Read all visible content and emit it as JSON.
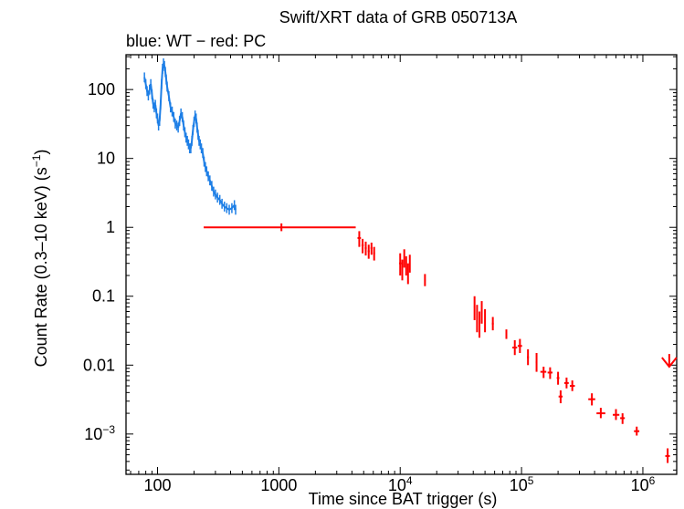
{
  "chart_data": {
    "type": "scatter",
    "title": "Swift/XRT data of GRB 050713A",
    "subtitle": "blue: WT − red: PC",
    "xlabel": "Time since BAT trigger (s)",
    "ylabel_main": "Count Rate (0.3–10 keV) (s",
    "ylabel_sup": "−1",
    "ylabel_tail": ")",
    "x_scale": "log",
    "y_scale": "log",
    "xlim": [
      55,
      1900000
    ],
    "ylim": [
      0.00026,
      320
    ],
    "x_ticks": [
      {
        "value": 100,
        "base": "100",
        "sup": ""
      },
      {
        "value": 1000,
        "base": "1000",
        "sup": ""
      },
      {
        "value": 10000,
        "base": "10",
        "sup": "4"
      },
      {
        "value": 100000,
        "base": "10",
        "sup": "5"
      },
      {
        "value": 1000000,
        "base": "10",
        "sup": "6"
      }
    ],
    "y_ticks": [
      {
        "value": 100,
        "base": "100",
        "sup": ""
      },
      {
        "value": 10,
        "base": "10",
        "sup": ""
      },
      {
        "value": 1,
        "base": "1",
        "sup": ""
      },
      {
        "value": 0.1,
        "base": "0.1",
        "sup": ""
      },
      {
        "value": 0.01,
        "base": "0.01",
        "sup": ""
      },
      {
        "value": 0.001,
        "base": "10",
        "sup": "−3"
      }
    ],
    "grid": false,
    "colors": {
      "WT": "#1e7fe6",
      "PC": "#ff0000"
    },
    "series": [
      {
        "name": "WT",
        "points": [
          [
            78,
            150
          ],
          [
            80,
            120
          ],
          [
            82,
            95
          ],
          [
            84,
            82
          ],
          [
            86,
            100
          ],
          [
            88,
            120
          ],
          [
            90,
            85
          ],
          [
            92,
            62
          ],
          [
            94,
            55
          ],
          [
            96,
            60
          ],
          [
            98,
            45
          ],
          [
            100,
            38
          ],
          [
            102,
            30
          ],
          [
            104,
            35
          ],
          [
            106,
            60
          ],
          [
            108,
            120
          ],
          [
            110,
            200
          ],
          [
            112,
            240
          ],
          [
            114,
            220
          ],
          [
            116,
            180
          ],
          [
            118,
            140
          ],
          [
            120,
            110
          ],
          [
            124,
            80
          ],
          [
            128,
            55
          ],
          [
            132,
            48
          ],
          [
            136,
            40
          ],
          [
            140,
            32
          ],
          [
            144,
            30
          ],
          [
            148,
            28
          ],
          [
            152,
            35
          ],
          [
            156,
            45
          ],
          [
            160,
            40
          ],
          [
            164,
            30
          ],
          [
            168,
            24
          ],
          [
            172,
            20
          ],
          [
            176,
            18
          ],
          [
            180,
            16
          ],
          [
            184,
            14
          ],
          [
            188,
            14
          ],
          [
            192,
            18
          ],
          [
            196,
            26
          ],
          [
            200,
            34
          ],
          [
            204,
            42
          ],
          [
            208,
            38
          ],
          [
            212,
            28
          ],
          [
            216,
            22
          ],
          [
            220,
            18
          ],
          [
            225,
            16
          ],
          [
            230,
            14
          ],
          [
            236,
            12
          ],
          [
            242,
            9
          ],
          [
            248,
            7.5
          ],
          [
            254,
            6.5
          ],
          [
            262,
            5.5
          ],
          [
            270,
            4.8
          ],
          [
            280,
            4
          ],
          [
            290,
            3.3
          ],
          [
            300,
            3
          ],
          [
            312,
            2.7
          ],
          [
            326,
            2.5
          ],
          [
            340,
            2.2
          ],
          [
            356,
            2
          ],
          [
            372,
            1.9
          ],
          [
            390,
            1.8
          ],
          [
            410,
            1.9
          ],
          [
            430,
            2.1
          ],
          [
            440,
            1.8
          ]
        ]
      },
      {
        "name": "PC",
        "points": [
          {
            "x": 1050,
            "y": 1.0,
            "xmin": 240,
            "xmax": 4300,
            "ymin": 0.88,
            "ymax": 1.14
          },
          {
            "x": 4600,
            "y": 0.7,
            "xmin": 4450,
            "xmax": 4750,
            "ymin": 0.52,
            "ymax": 0.88
          },
          {
            "x": 4900,
            "y": 0.55,
            "xmin": 4800,
            "xmax": 5000,
            "ymin": 0.42,
            "ymax": 0.68
          },
          {
            "x": 5200,
            "y": 0.5,
            "xmin": 5100,
            "xmax": 5300,
            "ymin": 0.39,
            "ymax": 0.62
          },
          {
            "x": 5500,
            "y": 0.45,
            "xmin": 5400,
            "xmax": 5600,
            "ymin": 0.35,
            "ymax": 0.56
          },
          {
            "x": 5800,
            "y": 0.5,
            "xmin": 5700,
            "xmax": 5900,
            "ymin": 0.4,
            "ymax": 0.6
          },
          {
            "x": 6100,
            "y": 0.42,
            "xmin": 6000,
            "xmax": 6200,
            "ymin": 0.33,
            "ymax": 0.52
          },
          {
            "x": 10000,
            "y": 0.3,
            "xmin": 9800,
            "xmax": 10200,
            "ymin": 0.2,
            "ymax": 0.42
          },
          {
            "x": 10400,
            "y": 0.25,
            "xmin": 10300,
            "xmax": 10500,
            "ymin": 0.17,
            "ymax": 0.34
          },
          {
            "x": 10800,
            "y": 0.35,
            "xmin": 10700,
            "xmax": 10900,
            "ymin": 0.26,
            "ymax": 0.48
          },
          {
            "x": 11200,
            "y": 0.28,
            "xmin": 11100,
            "xmax": 11300,
            "ymin": 0.2,
            "ymax": 0.38
          },
          {
            "x": 11600,
            "y": 0.22,
            "xmin": 11500,
            "xmax": 11700,
            "ymin": 0.15,
            "ymax": 0.3
          },
          {
            "x": 12000,
            "y": 0.3,
            "xmin": 11900,
            "xmax": 12100,
            "ymin": 0.22,
            "ymax": 0.4
          },
          {
            "x": 16000,
            "y": 0.17,
            "xmin": 15800,
            "xmax": 16200,
            "ymin": 0.14,
            "ymax": 0.21
          },
          {
            "x": 41000,
            "y": 0.07,
            "xmin": 40500,
            "xmax": 41500,
            "ymin": 0.045,
            "ymax": 0.1
          },
          {
            "x": 43000,
            "y": 0.05,
            "xmin": 42500,
            "xmax": 43500,
            "ymin": 0.03,
            "ymax": 0.075
          },
          {
            "x": 45000,
            "y": 0.04,
            "xmin": 44500,
            "xmax": 45500,
            "ymin": 0.025,
            "ymax": 0.06
          },
          {
            "x": 47000,
            "y": 0.06,
            "xmin": 46500,
            "xmax": 47500,
            "ymin": 0.04,
            "ymax": 0.085
          },
          {
            "x": 50000,
            "y": 0.045,
            "xmin": 49500,
            "xmax": 50500,
            "ymin": 0.03,
            "ymax": 0.065
          },
          {
            "x": 58000,
            "y": 0.04,
            "xmin": 57000,
            "xmax": 59000,
            "ymin": 0.032,
            "ymax": 0.05
          },
          {
            "x": 75000,
            "y": 0.028,
            "xmin": 74000,
            "xmax": 76000,
            "ymin": 0.024,
            "ymax": 0.033
          },
          {
            "x": 88000,
            "y": 0.018,
            "xmin": 84000,
            "xmax": 92000,
            "ymin": 0.014,
            "ymax": 0.023
          },
          {
            "x": 97000,
            "y": 0.019,
            "xmin": 93000,
            "xmax": 101000,
            "ymin": 0.015,
            "ymax": 0.024
          },
          {
            "x": 113000,
            "y": 0.013,
            "xmin": 111000,
            "xmax": 115000,
            "ymin": 0.01,
            "ymax": 0.017
          },
          {
            "x": 133000,
            "y": 0.011,
            "xmin": 131000,
            "xmax": 135000,
            "ymin": 0.008,
            "ymax": 0.015
          },
          {
            "x": 152000,
            "y": 0.008,
            "xmin": 143000,
            "xmax": 160000,
            "ymin": 0.0065,
            "ymax": 0.0095
          },
          {
            "x": 172000,
            "y": 0.0078,
            "xmin": 164000,
            "xmax": 180000,
            "ymin": 0.0063,
            "ymax": 0.0093
          },
          {
            "x": 200000,
            "y": 0.0065,
            "xmin": 195000,
            "xmax": 205000,
            "ymin": 0.0052,
            "ymax": 0.008
          },
          {
            "x": 210000,
            "y": 0.0035,
            "xmin": 202000,
            "xmax": 218000,
            "ymin": 0.0028,
            "ymax": 0.0043
          },
          {
            "x": 235000,
            "y": 0.0055,
            "xmin": 225000,
            "xmax": 245000,
            "ymin": 0.0046,
            "ymax": 0.0066
          },
          {
            "x": 262000,
            "y": 0.005,
            "xmin": 250000,
            "xmax": 275000,
            "ymin": 0.0042,
            "ymax": 0.006
          },
          {
            "x": 380000,
            "y": 0.0032,
            "xmin": 355000,
            "xmax": 405000,
            "ymin": 0.0026,
            "ymax": 0.0039
          },
          {
            "x": 450000,
            "y": 0.002,
            "xmin": 415000,
            "xmax": 490000,
            "ymin": 0.0017,
            "ymax": 0.0024
          },
          {
            "x": 600000,
            "y": 0.0019,
            "xmin": 565000,
            "xmax": 640000,
            "ymin": 0.0016,
            "ymax": 0.0023
          },
          {
            "x": 680000,
            "y": 0.0017,
            "xmin": 650000,
            "xmax": 710000,
            "ymin": 0.0014,
            "ymax": 0.002
          },
          {
            "x": 890000,
            "y": 0.0011,
            "xmin": 845000,
            "xmax": 935000,
            "ymin": 0.00095,
            "ymax": 0.00128
          },
          {
            "x": 1600000,
            "y": 0.00048,
            "xmin": 1530000,
            "xmax": 1670000,
            "ymin": 0.00038,
            "ymax": 0.00062
          }
        ]
      }
    ],
    "upper_limit": {
      "series": "PC",
      "x": 1650000,
      "y": 0.0095,
      "y_from": 0.0145
    }
  }
}
